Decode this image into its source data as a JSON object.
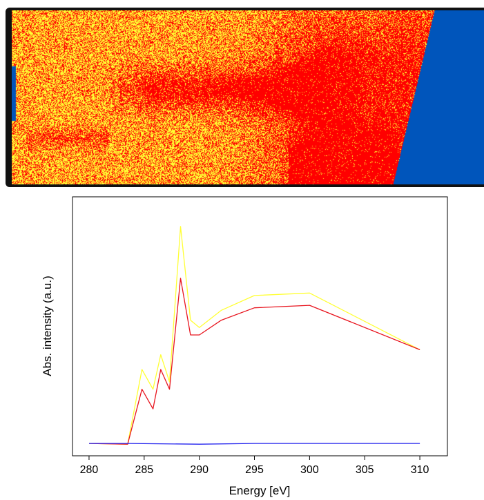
{
  "map": {
    "colors": {
      "red": "#ff0000",
      "yellow": "#ffff33",
      "blue": "#0055bb"
    }
  },
  "chart_data": {
    "type": "line",
    "xlabel": "Energy [eV]",
    "ylabel": "Abs. intensity (a.u.)",
    "xlim": [
      278.5,
      312.5
    ],
    "ylim": [
      -0.05,
      1.0
    ],
    "xticks": [
      "280",
      "285",
      "290",
      "295",
      "300",
      "305",
      "310"
    ],
    "xtick_values": [
      280,
      285,
      290,
      295,
      300,
      305,
      310
    ],
    "grid": false,
    "legend": "none",
    "series": [
      {
        "color": "#ffff33",
        "x": [
          280,
          283.5,
          284.8,
          285.8,
          286.5,
          287.3,
          288.3,
          289.2,
          290,
          292,
          295,
          300,
          310
        ],
        "y": [
          0.0,
          -0.003,
          0.3,
          0.22,
          0.36,
          0.25,
          0.88,
          0.5,
          0.47,
          0.54,
          0.6,
          0.61,
          0.38
        ]
      },
      {
        "color": "#e8141e",
        "x": [
          280,
          283.5,
          284.8,
          285.8,
          286.5,
          287.3,
          288.3,
          289.2,
          290,
          292,
          295,
          300,
          310
        ],
        "y": [
          0.0,
          -0.003,
          0.22,
          0.14,
          0.3,
          0.22,
          0.67,
          0.44,
          0.44,
          0.5,
          0.55,
          0.56,
          0.38
        ]
      },
      {
        "color": "#2222ee",
        "x": [
          280,
          283.5,
          290,
          295,
          300,
          310
        ],
        "y": [
          0.0,
          0.0,
          -0.003,
          0.0,
          0.0,
          0.0
        ]
      }
    ]
  }
}
